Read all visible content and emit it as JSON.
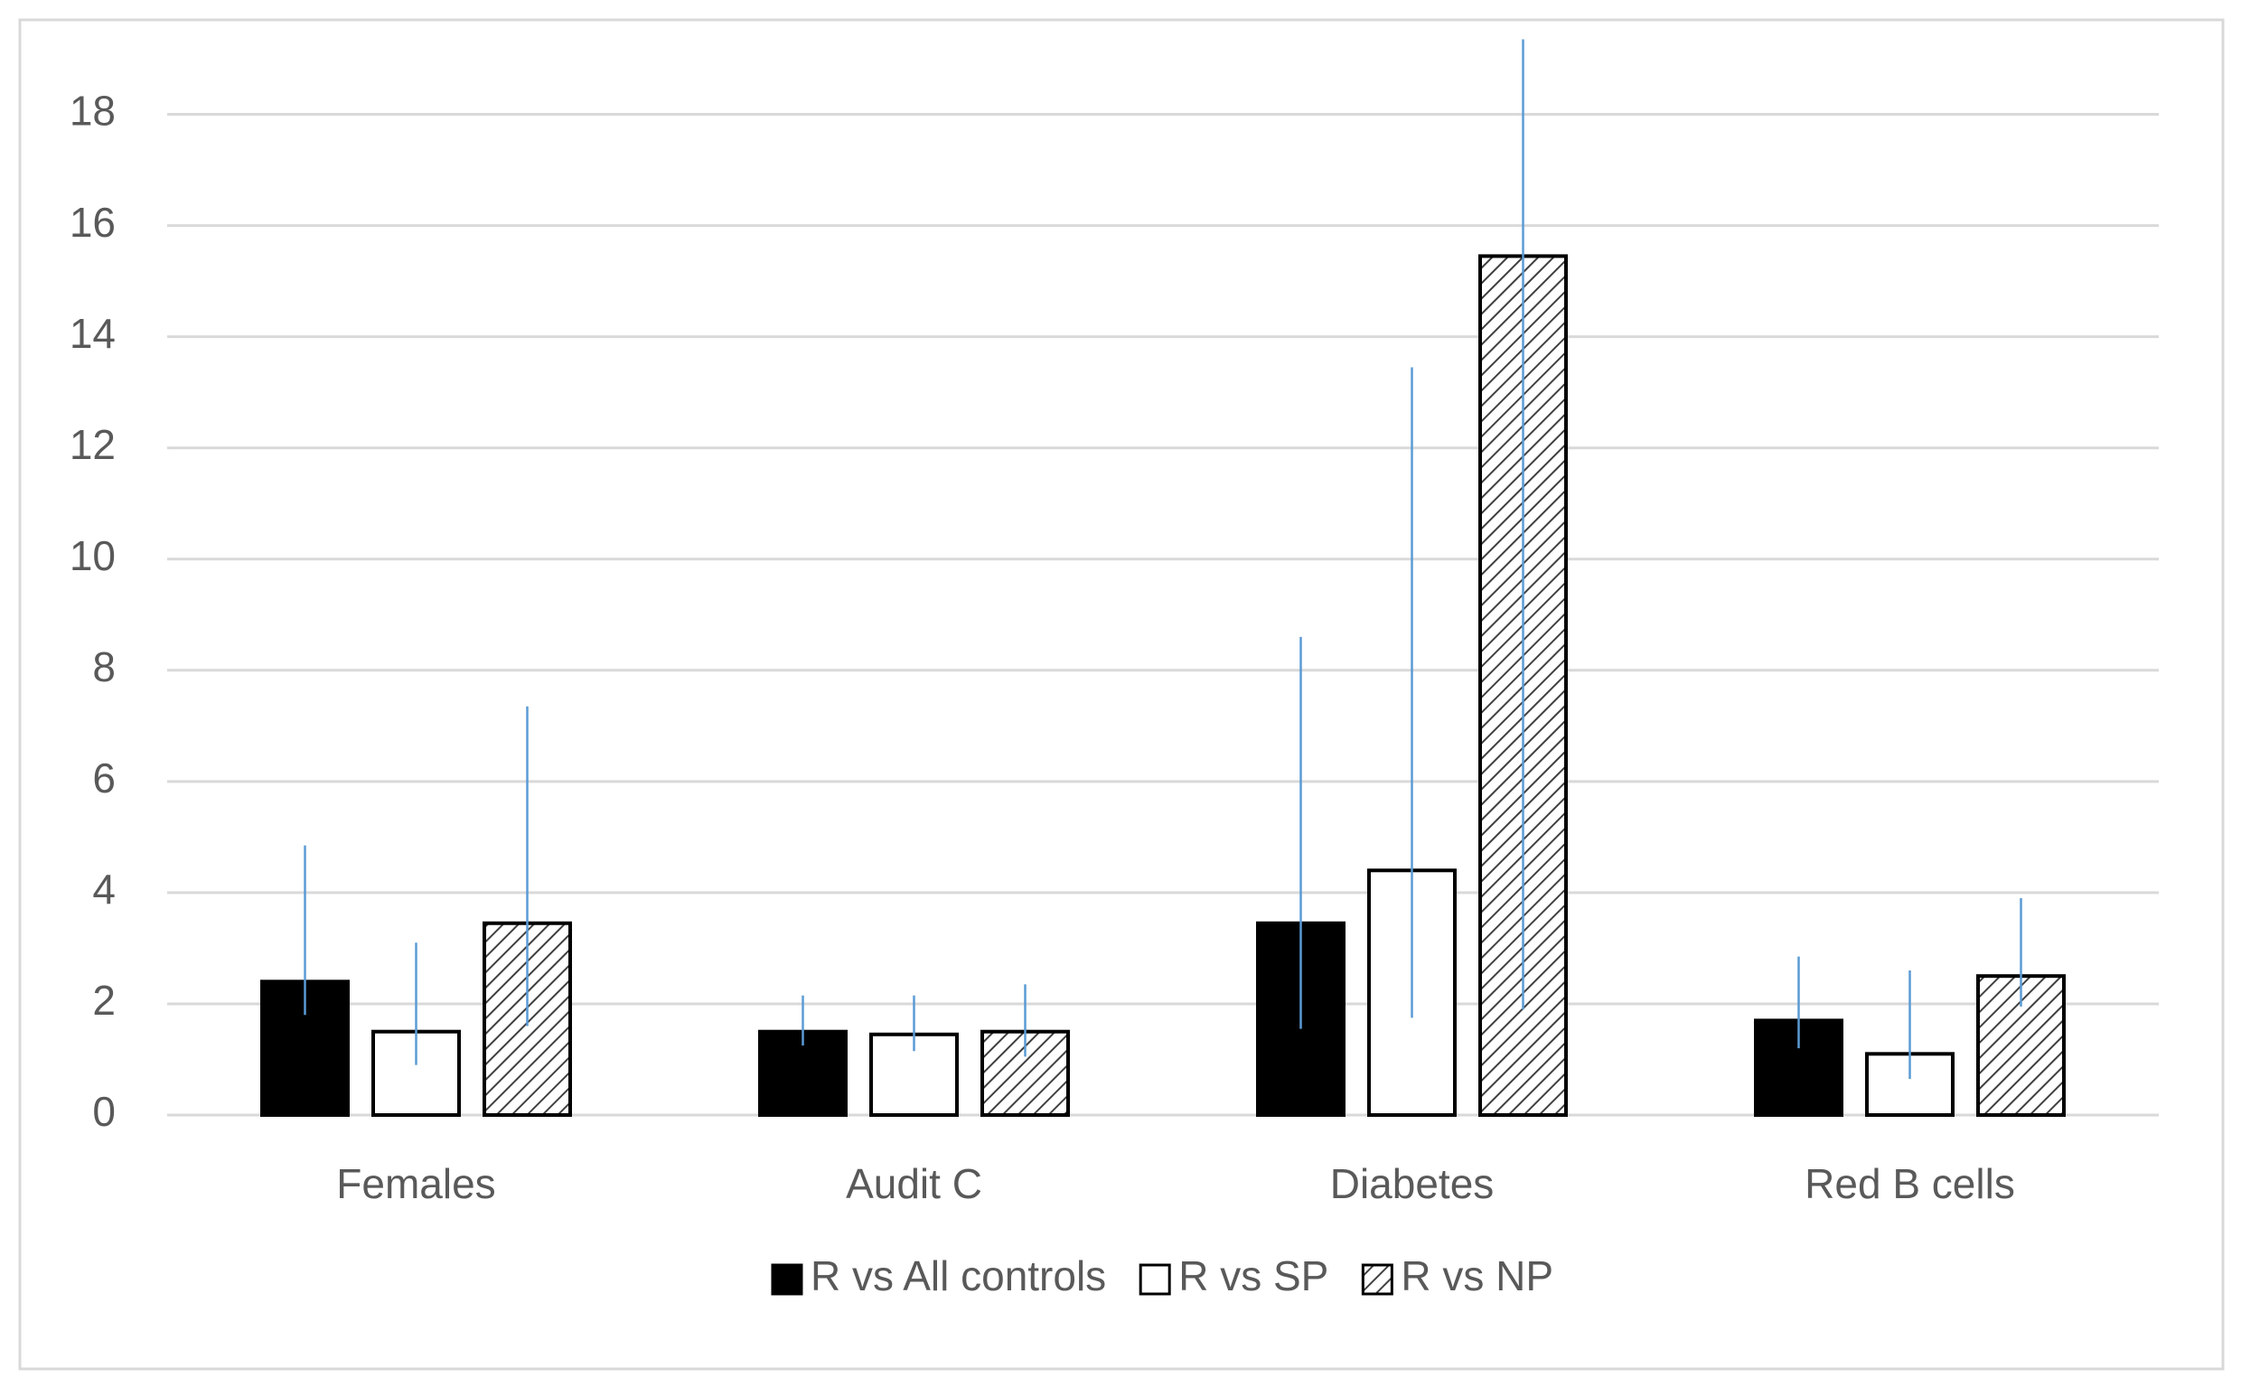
{
  "chart_data": {
    "type": "bar",
    "categories": [
      "Females",
      "Audit C",
      "Diabetes",
      "Red B cells"
    ],
    "series": [
      {
        "name": "R vs All controls",
        "color": "#000000",
        "values": [
          2.4,
          1.5,
          3.45,
          1.7
        ],
        "lower": [
          1.8,
          1.25,
          1.55,
          1.2
        ],
        "upper": [
          4.85,
          2.15,
          8.6,
          2.85
        ]
      },
      {
        "name": "R vs SP",
        "color": "#ffffff",
        "values": [
          1.5,
          1.45,
          4.4,
          1.1
        ],
        "lower": [
          0.9,
          1.15,
          1.75,
          0.65
        ],
        "upper": [
          3.1,
          2.15,
          13.45,
          2.6
        ]
      },
      {
        "name": "R vs NP",
        "color": "#ffffff",
        "pattern": "hatch",
        "values": [
          3.45,
          1.5,
          15.45,
          2.5
        ],
        "lower": [
          1.6,
          1.05,
          1.9,
          1.95
        ],
        "upper": [
          7.35,
          2.35,
          19.35,
          3.9
        ]
      }
    ],
    "error_color": "#5b9bd5",
    "ylim": [
      0,
      20
    ],
    "yticks": [
      0,
      2,
      4,
      6,
      8,
      10,
      12,
      14,
      16,
      18
    ],
    "grid": true,
    "legend": "bottom"
  }
}
